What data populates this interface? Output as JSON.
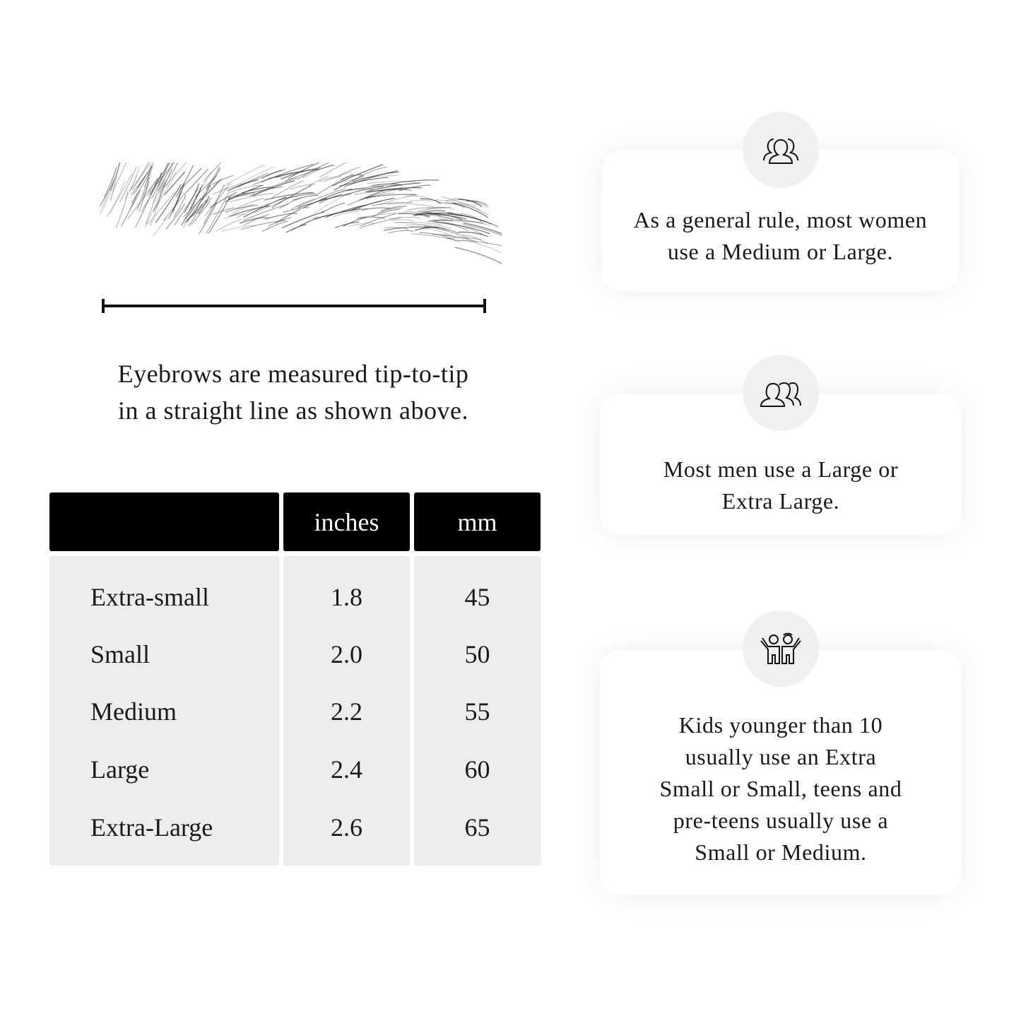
{
  "caption": {
    "line1": "Eyebrows are measured tip-to-tip",
    "line2": "in a straight line as shown above."
  },
  "table": {
    "headers": [
      "",
      "inches",
      "mm"
    ],
    "rows": [
      {
        "size": "Extra-small",
        "inches": "1.8",
        "mm": "45"
      },
      {
        "size": "Small",
        "inches": "2.0",
        "mm": "50"
      },
      {
        "size": "Medium",
        "inches": "2.2",
        "mm": "55"
      },
      {
        "size": "Large",
        "inches": "2.4",
        "mm": "60"
      },
      {
        "size": "Extra-Large",
        "inches": "2.6",
        "mm": "65"
      }
    ]
  },
  "cards": [
    {
      "icon": "women-group-icon",
      "lines": [
        "As a general rule, most women",
        "use a Medium or Large."
      ]
    },
    {
      "icon": "men-group-icon",
      "lines": [
        "Most men use a Large or",
        "Extra Large."
      ]
    },
    {
      "icon": "kids-icon",
      "lines": [
        "Kids younger than 10",
        "usually use an Extra",
        "Small or Small, teens and",
        "pre-teens usually use a",
        "Small or Medium."
      ]
    }
  ]
}
